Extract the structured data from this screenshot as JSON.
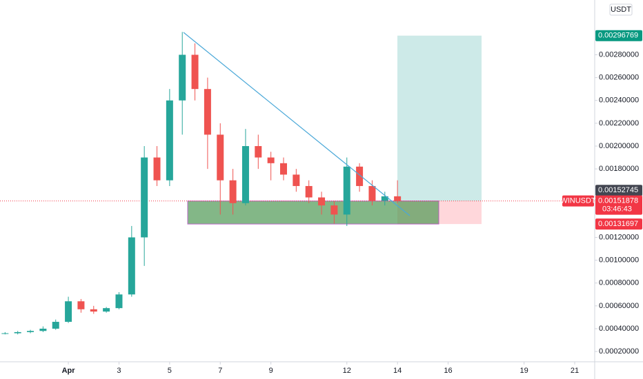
{
  "chart_data": {
    "type": "candlestick",
    "currency": "USDT",
    "symbol": "WINUSDT",
    "countdown": "03:46:43",
    "up_color": "#26a69a",
    "down_color": "#ef5350",
    "x": [
      -1.5,
      -1,
      -0.5,
      0,
      0.5,
      1,
      1.5,
      2,
      2.5,
      3,
      3.5,
      4,
      4.5,
      5,
      5.5,
      6,
      6.5,
      7,
      7.5,
      8,
      8.5,
      9,
      9.5,
      10,
      10.5,
      11,
      11.5,
      12,
      12.5,
      13,
      13.5,
      14
    ],
    "open": [
      0.00036,
      0.00036,
      0.00037,
      0.00038,
      0.0004,
      0.00046,
      0.00064,
      0.00057,
      0.00055,
      0.00058,
      0.0007,
      0.0012,
      0.0019,
      0.0017,
      0.0024,
      0.0028,
      0.0025,
      0.0021,
      0.0017,
      0.0015,
      0.002,
      0.0019,
      0.00185,
      0.00175,
      0.00165,
      0.00155,
      0.00148,
      0.0014,
      0.00182,
      0.00165,
      0.00152,
      0.00156
    ],
    "high": [
      0.00037,
      0.00038,
      0.00039,
      0.00042,
      0.00048,
      0.00068,
      0.00066,
      0.0006,
      0.00059,
      0.00072,
      0.0013,
      0.002,
      0.002,
      0.0025,
      0.003,
      0.0029,
      0.0026,
      0.0022,
      0.0018,
      0.00215,
      0.0021,
      0.00195,
      0.0019,
      0.0018,
      0.0017,
      0.0016,
      0.00152,
      0.0019,
      0.00185,
      0.0017,
      0.0016,
      0.0017
    ],
    "low": [
      0.00035,
      0.00035,
      0.00036,
      0.00037,
      0.00039,
      0.00045,
      0.00054,
      0.00053,
      0.00054,
      0.00057,
      0.00068,
      0.00095,
      0.00165,
      0.00165,
      0.0021,
      0.0024,
      0.0018,
      0.0014,
      0.0014,
      0.00148,
      0.0018,
      0.0017,
      0.0017,
      0.0016,
      0.0015,
      0.0014,
      0.00132,
      0.0013,
      0.0016,
      0.00148,
      0.00148,
      0.0015
    ],
    "close": [
      0.00036,
      0.00037,
      0.00038,
      0.0004,
      0.00046,
      0.00064,
      0.00057,
      0.00055,
      0.00058,
      0.0007,
      0.0012,
      0.0019,
      0.0017,
      0.0024,
      0.0028,
      0.0025,
      0.0021,
      0.0017,
      0.0015,
      0.002,
      0.0019,
      0.00185,
      0.00175,
      0.00165,
      0.00155,
      0.00148,
      0.0014,
      0.00182,
      0.00165,
      0.00152,
      0.00156,
      0.00151878
    ],
    "xlim": [
      -1.7,
      21.79
    ],
    "xticks": [
      {
        "value": 1,
        "label": "Apr"
      },
      3,
      5,
      7,
      9,
      12,
      14,
      16,
      19,
      21
    ],
    "ylim": [
      0.00011,
      0.00328
    ],
    "yticks": [
      {
        "value": 0.0002,
        "label": "0.00020000"
      },
      {
        "value": 0.0004,
        "label": "0.00040000"
      },
      {
        "value": 0.0006,
        "label": "0.00060000"
      },
      {
        "value": 0.0008,
        "label": "0.00080000"
      },
      {
        "value": 0.001,
        "label": "0.00100000"
      },
      {
        "value": 0.0012,
        "label": "0.00120000"
      },
      {
        "value": 0.0018,
        "label": "0.00180000"
      },
      {
        "value": 0.002,
        "label": "0.00200000"
      },
      {
        "value": 0.0022,
        "label": "0.00220000"
      },
      {
        "value": 0.0024,
        "label": "0.00240000"
      },
      {
        "value": 0.0026,
        "label": "0.00260000"
      },
      {
        "value": 0.0028,
        "label": "0.00280000"
      }
    ],
    "price_labels": [
      {
        "value": 0.00296769,
        "label": "0.00296769",
        "color": "#089981"
      },
      {
        "value": 0.00152745,
        "label": "0.00152745",
        "color": "#434651"
      },
      {
        "value": 0.00131697,
        "label": "0.00131697",
        "color": "#f23645"
      }
    ],
    "last_price": {
      "value": 0.00151878,
      "label": "0.00151878",
      "color": "#f23645"
    }
  }
}
